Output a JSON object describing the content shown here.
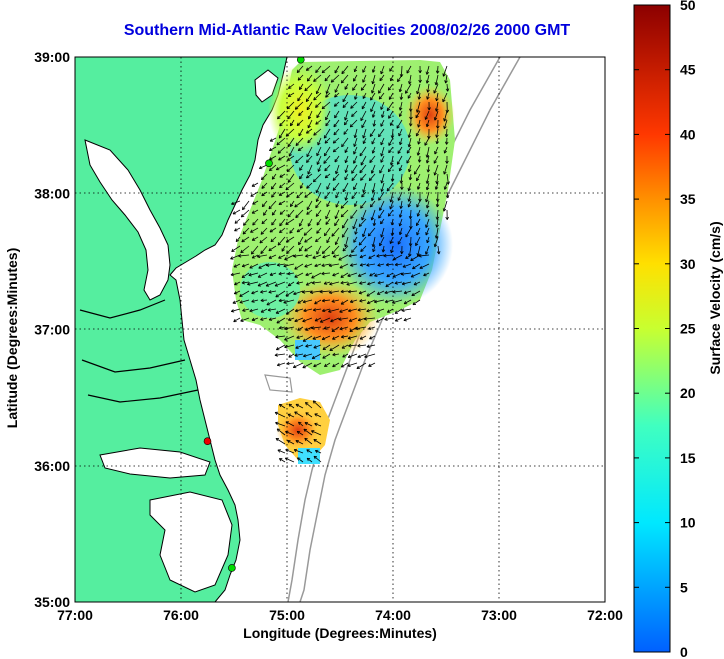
{
  "title": "Southern Mid-Atlantic Raw Velocities 2008/02/26 2000 GMT",
  "x_label": "Longitude (Degrees:Minutes)",
  "y_label": "Latitude (Degrees:Minutes)",
  "colorbar": {
    "label": "Surface Velocity (cm/s)",
    "min": 0,
    "max": 50,
    "ticks": [
      "0",
      "5",
      "10",
      "15",
      "20",
      "25",
      "30",
      "35",
      "40",
      "45",
      "50"
    ]
  },
  "axes": {
    "lon_ticks": [
      "77:00",
      "76:00",
      "75:00",
      "74:00",
      "73:00",
      "72:00"
    ],
    "lat_ticks": [
      "39:00",
      "38:00",
      "37:00",
      "36:00",
      "35:00"
    ],
    "lon_range": [
      -77,
      -72
    ],
    "lat_range": [
      35,
      39
    ],
    "grid": true
  },
  "colors": {
    "land": "#55ee9f",
    "water": "#ffffff",
    "coast": "#000000",
    "bathymetry": "#999999",
    "vector": "#000000",
    "title": "#0000dd"
  },
  "stations": [
    {
      "lon": -74.87,
      "lat": 38.98,
      "color": "#00dd00"
    },
    {
      "lon": -75.17,
      "lat": 38.22,
      "color": "#00dd00"
    },
    {
      "lon": -75.75,
      "lat": 36.18,
      "color": "#ee0000"
    },
    {
      "lon": -75.52,
      "lat": 35.25,
      "color": "#00dd00"
    }
  ]
}
